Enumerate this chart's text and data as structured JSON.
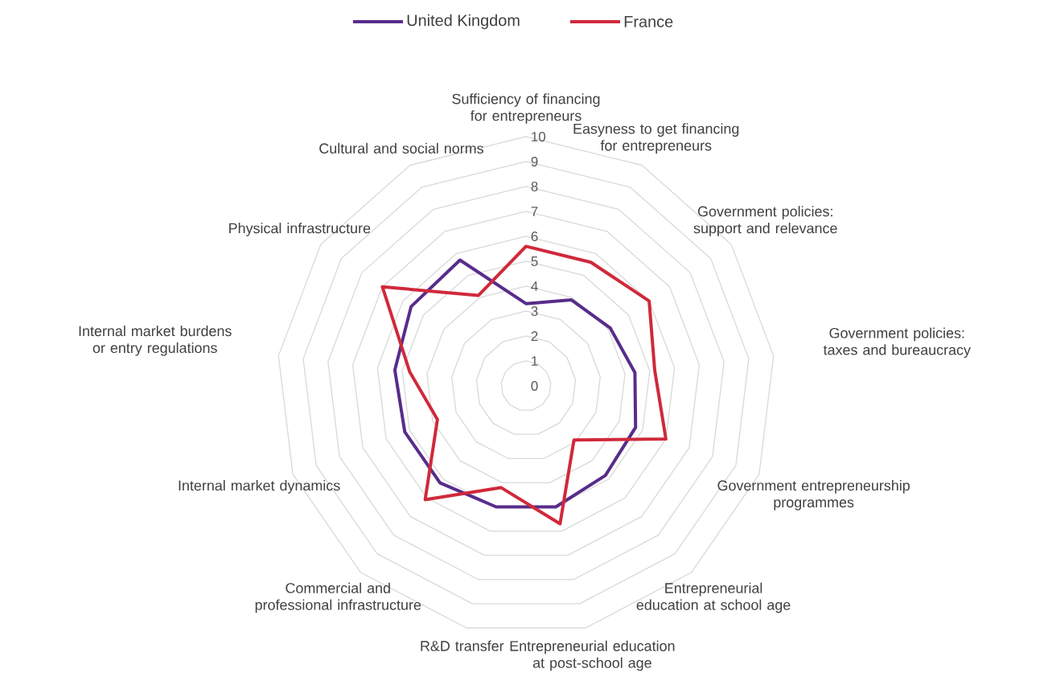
{
  "chart_data": {
    "type": "radar",
    "categories": [
      "Sufficiency of financing for entrepreneurs",
      "Easyness to get financing for entrepreneurs",
      "Government policies: support and relevance",
      "Government policies: taxes and bureaucracy",
      "Government entrepreneurship programmes",
      "Entrepreneurial education at school age",
      "Entrepreneurial education at post-school age",
      "R&D transfer",
      "Commercial and professional infrastructure",
      "Internal market dynamics",
      "Internal market burdens or entry regulations",
      "Physical infrastructure",
      "Cultural and social norms"
    ],
    "series": [
      {
        "name": "United Kingdom",
        "color": "#582c8b",
        "values": [
          3.3,
          3.9,
          4.1,
          4.4,
          4.7,
          4.8,
          5.0,
          5.0,
          5.2,
          5.2,
          5.3,
          5.6,
          5.7
        ]
      },
      {
        "name": "France",
        "color": "#d0293b",
        "values": [
          5.6,
          5.6,
          6.0,
          5.2,
          6.0,
          2.9,
          5.7,
          4.2,
          6.1,
          3.8,
          4.7,
          7.0,
          4.1
        ]
      }
    ],
    "ylim": [
      0,
      10
    ],
    "yticks": [
      0,
      1,
      2,
      3,
      4,
      5,
      6,
      7,
      8,
      9,
      10
    ],
    "grid": true,
    "legend": "top"
  }
}
